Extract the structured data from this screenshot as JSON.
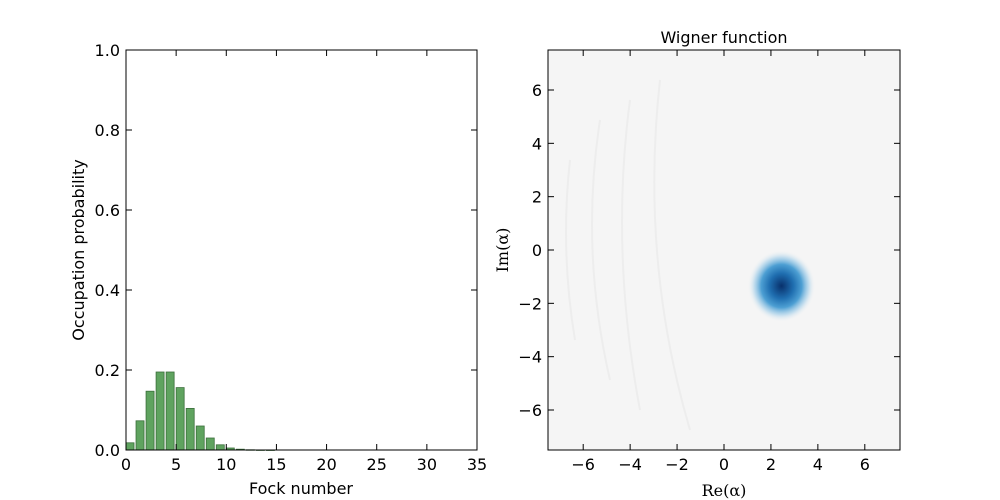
{
  "chart_data": [
    {
      "type": "bar",
      "xlabel": "Fock number",
      "ylabel": "Occupation probability",
      "xlim": [
        0,
        35
      ],
      "ylim": [
        0,
        1.0
      ],
      "bar_color": "#5fa35f",
      "edge_color": "#3a6e3a",
      "x": [
        0,
        1,
        2,
        3,
        4,
        5,
        6,
        7,
        8,
        9,
        10,
        11,
        12,
        13,
        14,
        15,
        16,
        17,
        18,
        19,
        20,
        21,
        22,
        23,
        24,
        25,
        26,
        27,
        28,
        29,
        30,
        31,
        32,
        33,
        34
      ],
      "values": [
        0.018,
        0.073,
        0.147,
        0.195,
        0.195,
        0.156,
        0.104,
        0.06,
        0.03,
        0.013,
        0.005,
        0.002,
        0.0006,
        0.0002,
        0.0001,
        0,
        0,
        0,
        0,
        0,
        0,
        0,
        0,
        0,
        0,
        0,
        0,
        0,
        0,
        0,
        0,
        0,
        0,
        0,
        0
      ],
      "xticks": [
        "0",
        "5",
        "10",
        "15",
        "20",
        "25",
        "30",
        "35"
      ],
      "yticks": [
        "0.0",
        "0.2",
        "0.4",
        "0.6",
        "0.8",
        "1.0"
      ]
    },
    {
      "type": "heatmap",
      "title": "Wigner function",
      "xlabel": "Re(α)",
      "ylabel": "Im(α)",
      "xlim": [
        -7.5,
        7.5
      ],
      "ylim": [
        -7.5,
        7.5
      ],
      "background_color": "#f5f5f5",
      "peak_color": "#08306b",
      "mid_color": "#2b8cbe",
      "peak_center": [
        2.45,
        -1.35
      ],
      "xticks": [
        "−6",
        "−4",
        "−2",
        "0",
        "2",
        "4",
        "6"
      ],
      "yticks": [
        "−6",
        "−4",
        "−2",
        "0",
        "2",
        "4",
        "6"
      ]
    }
  ]
}
